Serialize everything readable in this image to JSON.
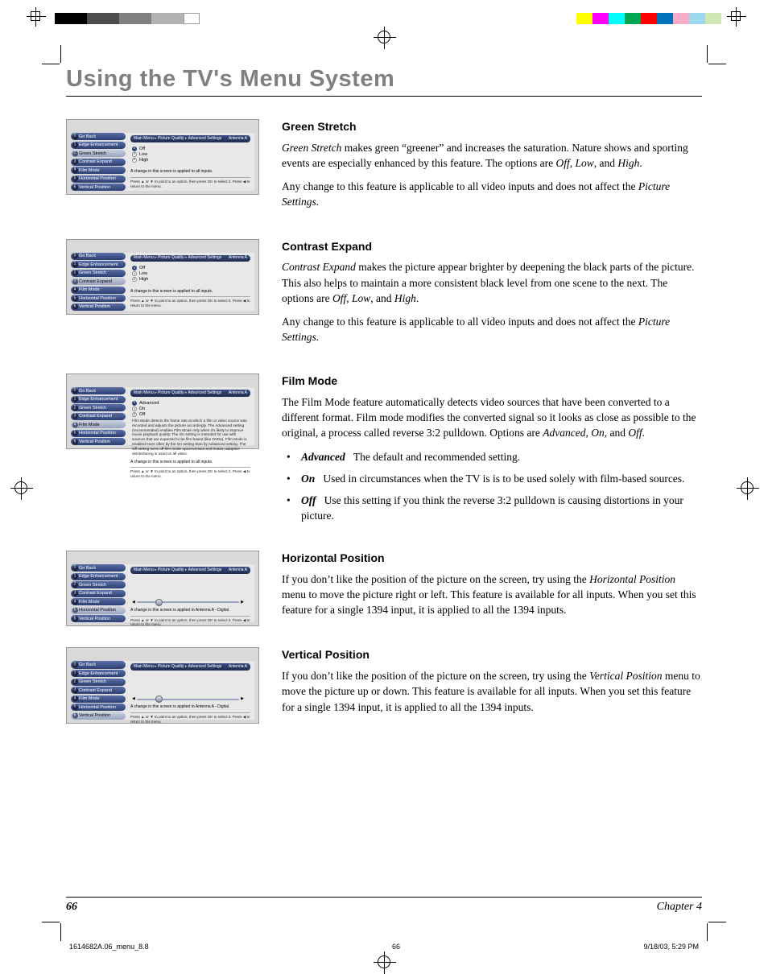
{
  "page_title": "Using the TV's Menu System",
  "page_number": "66",
  "chapter_label": "Chapter 4",
  "print": {
    "file": "1614682A.06_menu_8.8",
    "page": "66",
    "datetime": "9/18/03, 5:29 PM"
  },
  "colorbars_left": [
    "#000000",
    "#000000",
    "#4d4d4d",
    "#4d4d4d",
    "#808080",
    "#808080",
    "#b3b3b3",
    "#b3b3b3",
    "#ffffff"
  ],
  "colorbars_right": [
    "#ffff00",
    "#ff00ff",
    "#00ffff",
    "#00a651",
    "#ff0000",
    "#0072bc",
    "#f7adc7",
    "#9ed7f0",
    "#d1e8b4"
  ],
  "menu": {
    "breadcrumb": [
      "Main Menu",
      "Picture Quality",
      "Advanced Settings"
    ],
    "antenna": "Antenna A",
    "side_items": [
      {
        "n": "0",
        "label": "Go Back"
      },
      {
        "n": "1",
        "label": "Edge Enhancement"
      },
      {
        "n": "2",
        "label": "Green Stretch"
      },
      {
        "n": "3",
        "label": "Contrast Expand"
      },
      {
        "n": "4",
        "label": "Film Mode"
      },
      {
        "n": "5",
        "label": "Horizontal Position"
      },
      {
        "n": "6",
        "label": "Vertical Position"
      }
    ],
    "help1": "Press ▲ or ▼ to point to an option, then press OK to select it. Press ◀ to return to the menu.",
    "change_all": "A change in this screen is applied to all inputs.",
    "change_antenna": "A change in this screen is applied to Antenna A - Digital."
  },
  "figures": {
    "green": {
      "selected_index": 2,
      "options": [
        {
          "n": "0",
          "label": "Off",
          "on": true
        },
        {
          "n": "1",
          "label": "Low",
          "on": false
        },
        {
          "n": "2",
          "label": "High",
          "on": false
        }
      ],
      "note_key": "change_all"
    },
    "contrast": {
      "selected_index": 3,
      "options": [
        {
          "n": "0",
          "label": "Off",
          "on": true
        },
        {
          "n": "1",
          "label": "Low",
          "on": false
        },
        {
          "n": "2",
          "label": "High",
          "on": false
        }
      ],
      "note_key": "change_all"
    },
    "film": {
      "selected_index": 4,
      "options": [
        {
          "n": "0",
          "label": "Advanced",
          "on": true
        },
        {
          "n": "1",
          "label": "On",
          "on": false
        },
        {
          "n": "2",
          "label": "Off",
          "on": false
        }
      ],
      "desc": "Film Mode detects the frame rate at which a film or video source was recorded and adjusts the picture accordingly. The Advanced setting (recommended) enables Film Mode only when it's likely to improve movie playback quality. The On setting is intended for use with sources that are expected to be film based (like DVDs). Film Mode is enabled more often by the On setting than by Advanced setting. The Off setting turns off film mode upconversion and motion adaptive deinterlacing is used on all video.",
      "note_key": "change_all"
    },
    "horiz": {
      "selected_index": 5,
      "slider_pos": 0.18,
      "note_key": "change_antenna"
    },
    "vert": {
      "selected_index": 6,
      "slider_pos": 0.18,
      "note_key": "change_antenna"
    }
  },
  "sections": {
    "green": {
      "heading": "Green Stretch",
      "paras": [
        "<em>Green Stretch</em> makes green “greener” and increases the saturation. Nature shows and sporting events are especially enhanced by this feature. The options are <em>Off</em>, <em>Low</em>, and <em>High</em>.",
        "Any change to this feature is applicable to all video inputs and does not affect the <em>Picture Settings</em>."
      ]
    },
    "contrast": {
      "heading": "Contrast Expand",
      "paras": [
        "<em>Contrast Expand</em> makes the picture appear brighter by deepening the black parts of the picture. This also helps to maintain a more consistent black level from one scene to the next. The options are <em>Off</em>, <em>Low</em>, and <em>High</em>.",
        "Any change to this feature is applicable to all video inputs and does not affect the <em>Picture Settings</em>."
      ]
    },
    "film": {
      "heading": "Film Mode",
      "paras": [
        "The Film Mode feature automatically detects video sources that have been converted to a different format. Film mode modifies the converted signal so it looks as close as possible to the original, a process called reverse 3:2  pulldown. Options are <em>Advanced, On,</em> and <em>Off</em>."
      ],
      "bullets": [
        "<strong><em>Advanced</em></strong>&nbsp;&nbsp;&nbsp;The default and recommended setting.",
        "<strong><em>On</em></strong>&nbsp;&nbsp;&nbsp;Used in circumstances when the TV is is to be used solely with film-based sources.",
        "<strong><em>Off</em></strong>&nbsp;&nbsp;&nbsp;Use this setting if you think the reverse 3:2 pulldown is causing distortions in your picture."
      ]
    },
    "horiz": {
      "heading": "Horizontal Position",
      "paras": [
        "If you don’t like the position of the picture on the screen, try using the <em>Horizontal Position</em> menu to move the picture right or left. This feature is available for all inputs. When you set this feature for a single 1394 input, it is applied to all the 1394 inputs."
      ]
    },
    "vert": {
      "heading": "Vertical Position",
      "paras": [
        "If you don’t like the position of the picture on the screen, try using the <em>Vertical Position</em> menu to move the picture up or down. This feature is available for all inputs. When you set this feature for a single 1394 input, it is applied to all the 1394 inputs."
      ]
    }
  }
}
